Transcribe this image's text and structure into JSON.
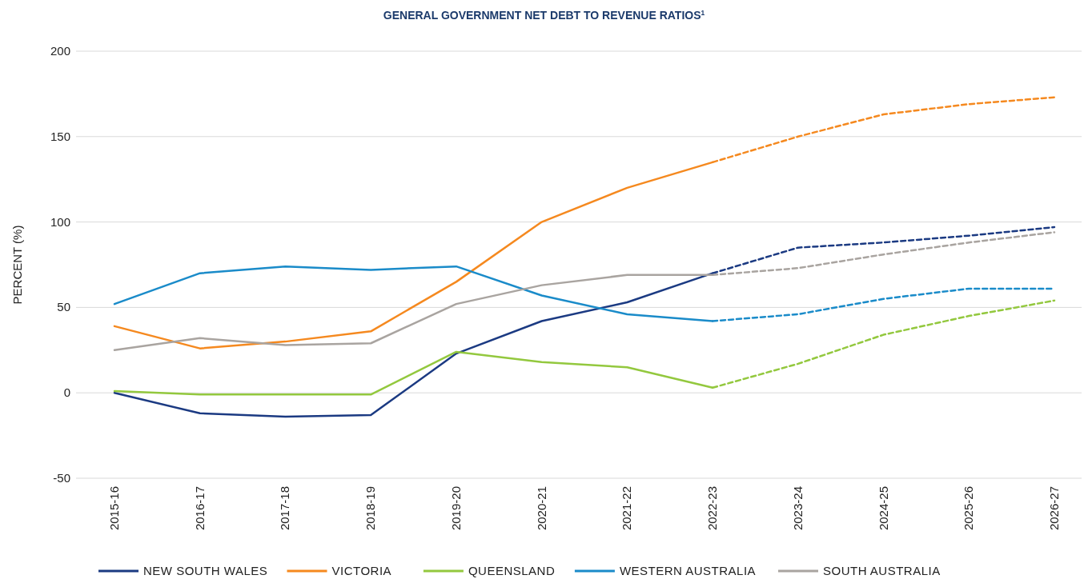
{
  "chart_data": {
    "type": "line",
    "title": "GENERAL GOVERNMENT NET DEBT TO REVENUE RATIOS$^{1}$",
    "ylabel": "PERCENT (%)",
    "categories": [
      "2015-16",
      "2016-17",
      "2017-18",
      "2018-19",
      "2019-20",
      "2020-21",
      "2021-22",
      "2022-23",
      "2023-24",
      "2024-25",
      "2025-26",
      "2026-27"
    ],
    "series": [
      {
        "name": "NEW SOUTH WALES",
        "color": "#1b3a82",
        "line_style": "solid",
        "values": [
          0,
          -12,
          -14,
          -13,
          23,
          42,
          53,
          70,
          null,
          null,
          null,
          null
        ]
      },
      {
        "name": "VICTORIA",
        "color": "#f5891f",
        "line_style": "solid",
        "values": [
          39,
          26,
          30,
          36,
          65,
          100,
          120,
          135,
          null,
          null,
          null,
          null
        ]
      },
      {
        "name": "QUEENSLAND",
        "color": "#93c83e",
        "line_style": "solid",
        "values": [
          1,
          -1,
          -1,
          -1,
          24,
          18,
          15,
          3,
          null,
          null,
          null,
          null
        ]
      },
      {
        "name": "WESTERN AUSTRALIA",
        "color": "#1a8bc9",
        "line_style": "solid",
        "values": [
          52,
          70,
          74,
          72,
          74,
          57,
          46,
          42,
          null,
          null,
          null,
          null
        ]
      },
      {
        "name": "SOUTH AUSTRALIA",
        "color": "#a9a4a0",
        "line_style": "solid",
        "values": [
          25,
          32,
          28,
          29,
          52,
          63,
          69,
          69,
          null,
          null,
          null,
          null
        ]
      },
      {
        "color": "#1b3a82",
        "line_style": "dashed",
        "values": [
          null,
          null,
          null,
          null,
          null,
          null,
          null,
          70,
          85,
          88,
          92,
          97
        ]
      },
      {
        "color": "#f5891f",
        "line_style": "dashed",
        "values": [
          null,
          null,
          null,
          null,
          null,
          null,
          null,
          135,
          150,
          163,
          169,
          173
        ]
      },
      {
        "color": "#93c83e",
        "line_style": "dashed",
        "values": [
          null,
          null,
          null,
          null,
          null,
          null,
          null,
          3,
          17,
          34,
          45,
          54
        ]
      },
      {
        "color": "#1a8bc9",
        "line_style": "dashed",
        "values": [
          null,
          null,
          null,
          null,
          null,
          null,
          null,
          42,
          46,
          55,
          61,
          61
        ]
      },
      {
        "color": "#a9a4a0",
        "line_style": "dashed",
        "values": [
          null,
          null,
          null,
          null,
          null,
          null,
          null,
          69,
          73,
          81,
          88,
          94
        ]
      }
    ],
    "ylim": [
      -50,
      200
    ],
    "yticks": [
      -50,
      0,
      50,
      100,
      150,
      200
    ],
    "grid": "y",
    "legend": "bottom"
  }
}
